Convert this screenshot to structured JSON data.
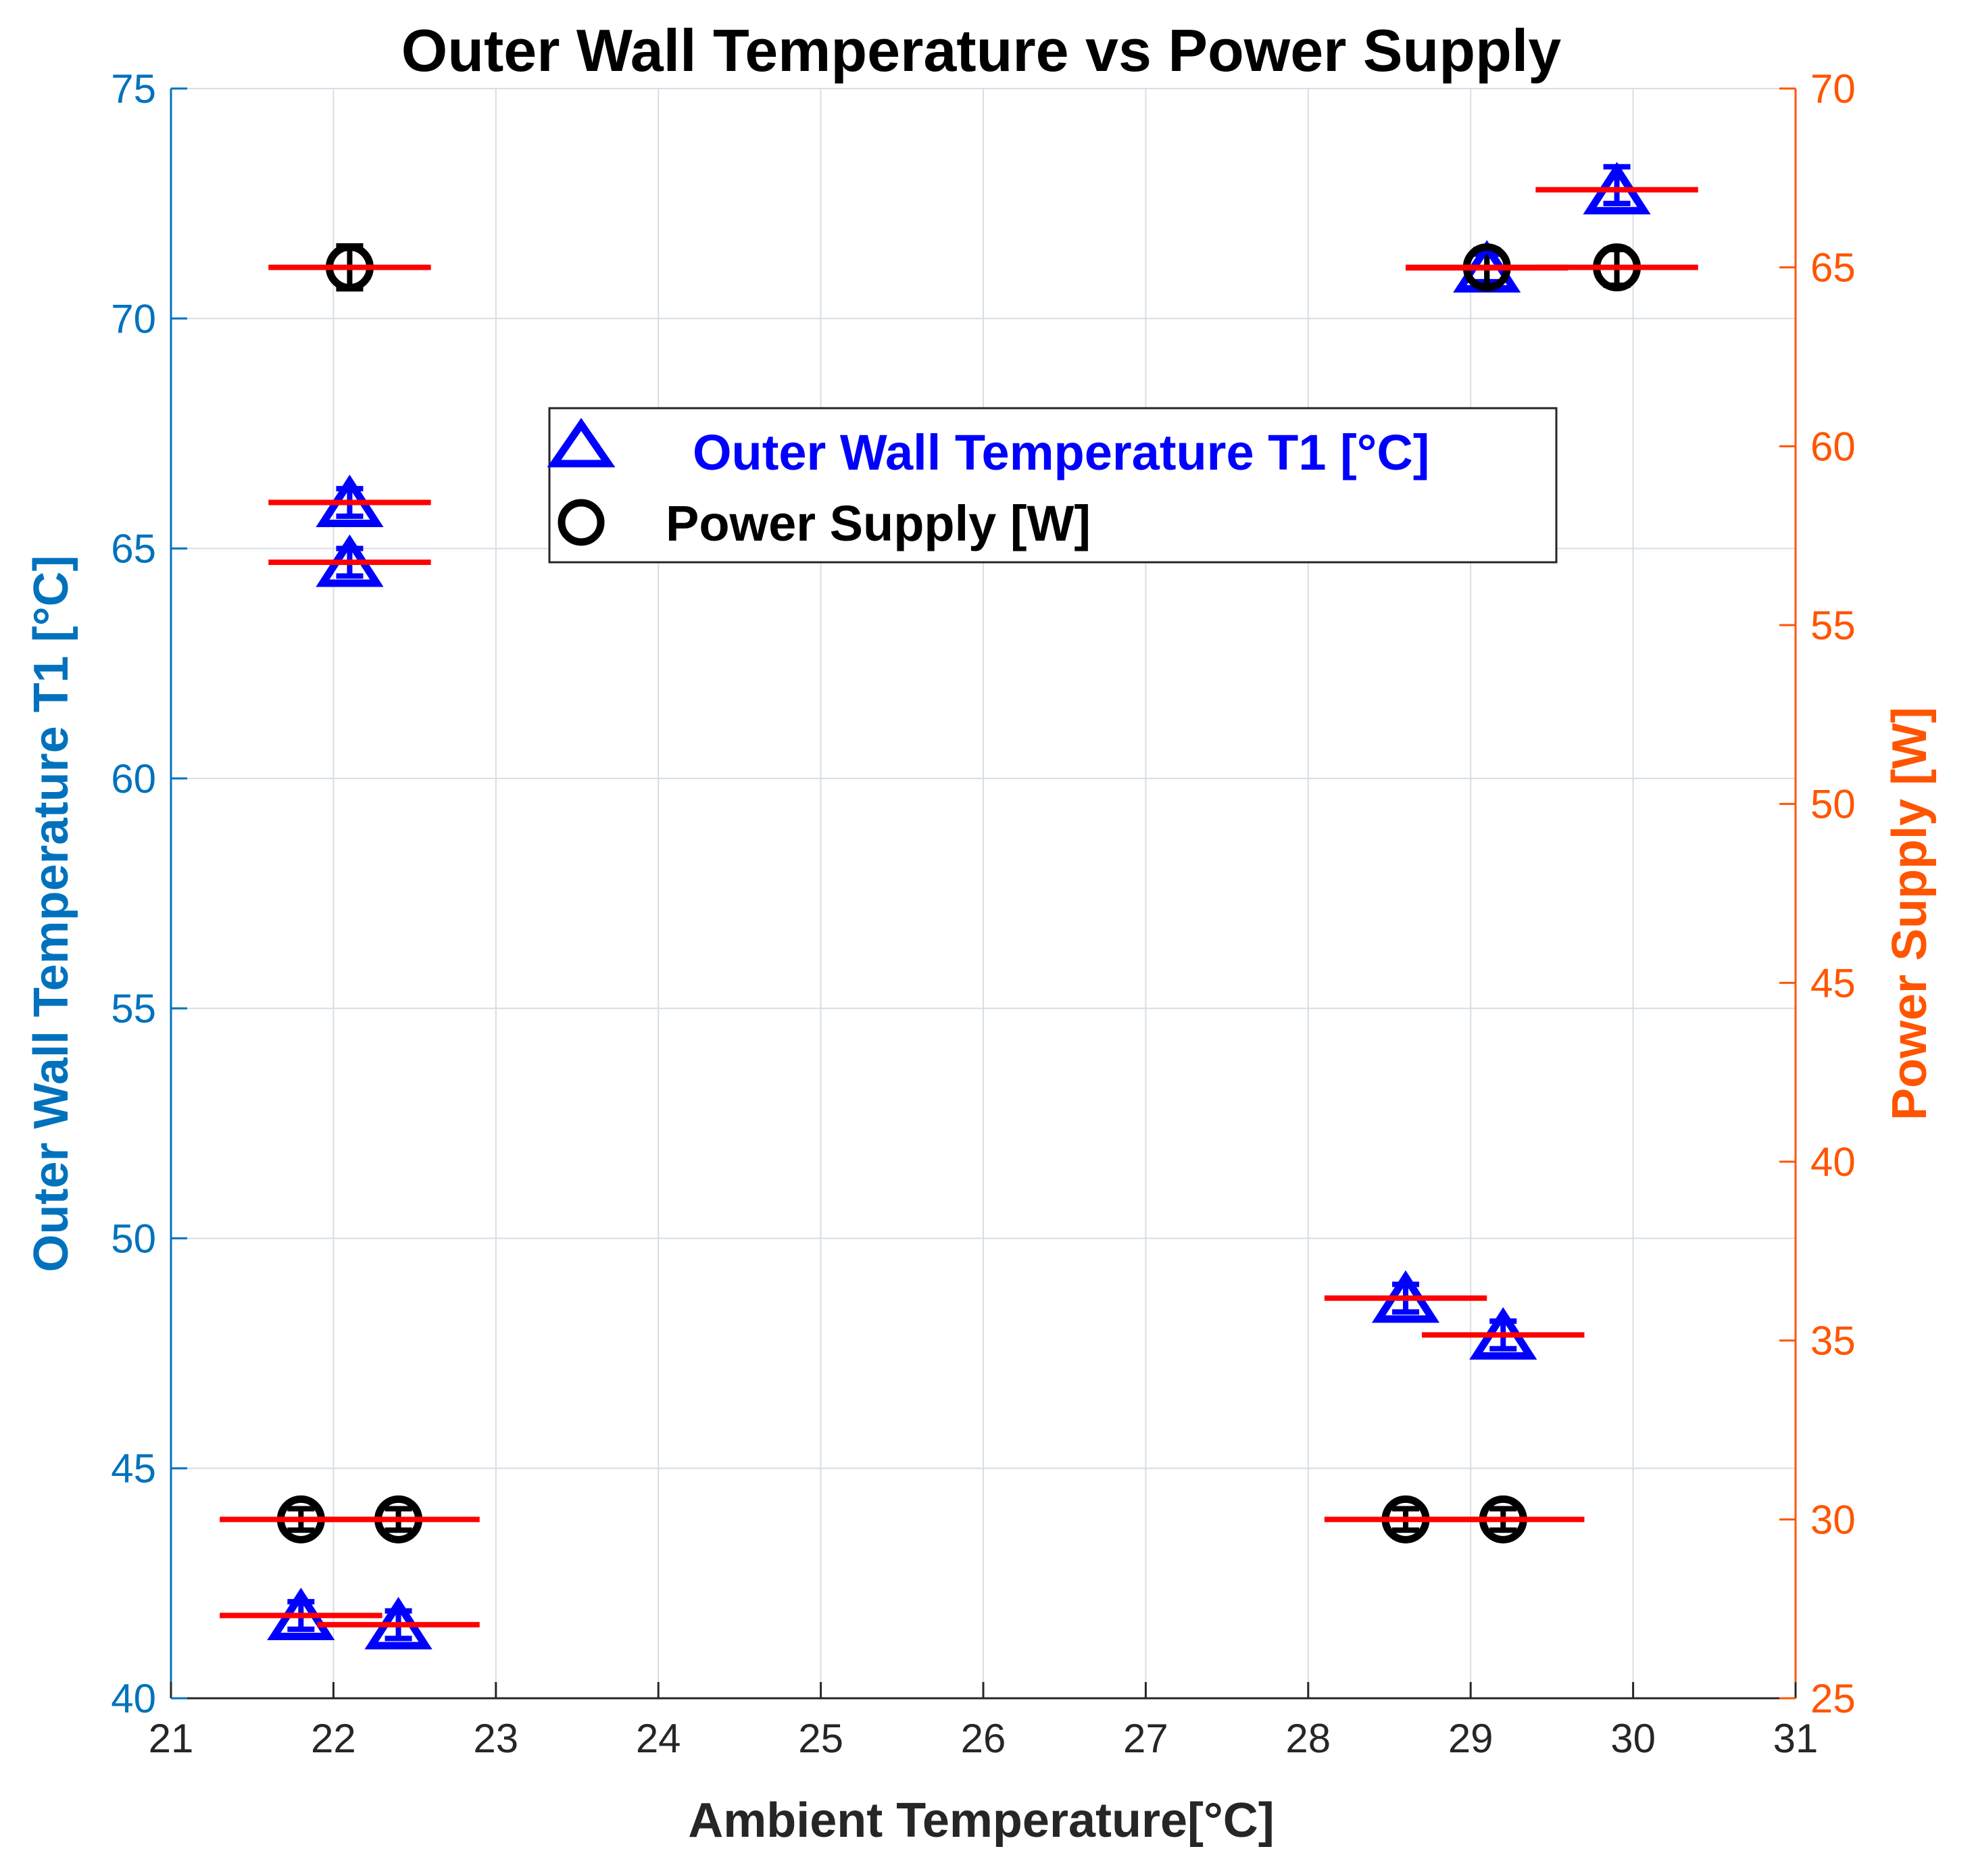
{
  "chart_data": {
    "type": "scatter",
    "title": "Outer Wall Temperature vs Power Supply",
    "xlabel": "Ambient Temperature[°C]",
    "ylabel_left": "Outer Wall Temperature T1 [°C]",
    "ylabel_right": "Power Supply [W]",
    "xlim": [
      21,
      31
    ],
    "ylim_left": [
      40,
      75
    ],
    "ylim_right": [
      25,
      70
    ],
    "xticks": [
      "21",
      "22",
      "23",
      "24",
      "25",
      "26",
      "27",
      "28",
      "29",
      "30",
      "31"
    ],
    "yticks_left": [
      "40",
      "45",
      "50",
      "55",
      "60",
      "65",
      "70",
      "75"
    ],
    "yticks_right": [
      "25",
      "30",
      "35",
      "40",
      "45",
      "50",
      "55",
      "60",
      "65",
      "70"
    ],
    "grid": true,
    "legend_position": "upper-center",
    "legend": {
      "t1_label": "Outer Wall Temperature T1 [°C]",
      "power_label": "Power Supply [W]"
    },
    "colors": {
      "t1": "#0000FF",
      "power": "#000000",
      "error_bar": "#FF0000",
      "left_axis": "#0072BD",
      "right_axis": "#FF5500",
      "grid": "#D6DEE6"
    },
    "series": [
      {
        "name": "Outer Wall Temperature T1 [°C]",
        "axis": "left",
        "marker": "triangle",
        "points": [
          {
            "x": 21.8,
            "y": 41.8,
            "err_lo": 0.3,
            "err_hi": 0.3,
            "xerr_lo": 0.5,
            "xerr_hi": 0.5
          },
          {
            "x": 22.4,
            "y": 41.6,
            "err_lo": 0.3,
            "err_hi": 0.3,
            "xerr_lo": 0.5,
            "xerr_hi": 0.5
          },
          {
            "x": 22.1,
            "y": 64.7,
            "err_lo": 0.3,
            "err_hi": 0.3,
            "xerr_lo": 0.5,
            "xerr_hi": 0.5
          },
          {
            "x": 22.1,
            "y": 66.0,
            "err_lo": 0.3,
            "err_hi": 0.3,
            "xerr_lo": 0.5,
            "xerr_hi": 0.5
          },
          {
            "x": 28.6,
            "y": 48.7,
            "err_lo": 0.3,
            "err_hi": 0.3,
            "xerr_lo": 0.5,
            "xerr_hi": 0.5
          },
          {
            "x": 29.2,
            "y": 47.9,
            "err_lo": 0.3,
            "err_hi": 0.3,
            "xerr_lo": 0.5,
            "xerr_hi": 0.5
          },
          {
            "x": 29.1,
            "y": 71.1,
            "err_lo": 0.3,
            "err_hi": 0.3,
            "xerr_lo": 0.5,
            "xerr_hi": 0.5
          },
          {
            "x": 29.9,
            "y": 72.8,
            "err_lo": 0.3,
            "err_hi": 0.5,
            "xerr_lo": 0.5,
            "xerr_hi": 0.5
          }
        ]
      },
      {
        "name": "Power Supply [W]",
        "axis": "right",
        "marker": "circle",
        "points": [
          {
            "x": 21.8,
            "y": 30,
            "err_lo": 0.3,
            "err_hi": 0.3,
            "xerr_lo": 0.5,
            "xerr_hi": 0.5
          },
          {
            "x": 22.4,
            "y": 30,
            "err_lo": 0.3,
            "err_hi": 0.3,
            "xerr_lo": 0.5,
            "xerr_hi": 0.5
          },
          {
            "x": 22.1,
            "y": 65,
            "err_lo": 0.6,
            "err_hi": 0.6,
            "xerr_lo": 0.5,
            "xerr_hi": 0.5
          },
          {
            "x": 28.6,
            "y": 30,
            "err_lo": 0.3,
            "err_hi": 0.3,
            "xerr_lo": 0.5,
            "xerr_hi": 0.5
          },
          {
            "x": 29.2,
            "y": 30,
            "err_lo": 0.3,
            "err_hi": 0.3,
            "xerr_lo": 0.5,
            "xerr_hi": 0.5
          },
          {
            "x": 29.1,
            "y": 65,
            "err_lo": 0.5,
            "err_hi": 0.5,
            "xerr_lo": 0.5,
            "xerr_hi": 0.5
          },
          {
            "x": 29.9,
            "y": 65,
            "err_lo": 0.5,
            "err_hi": 0.5,
            "xerr_lo": 0.5,
            "xerr_hi": 0.5
          }
        ]
      }
    ]
  }
}
